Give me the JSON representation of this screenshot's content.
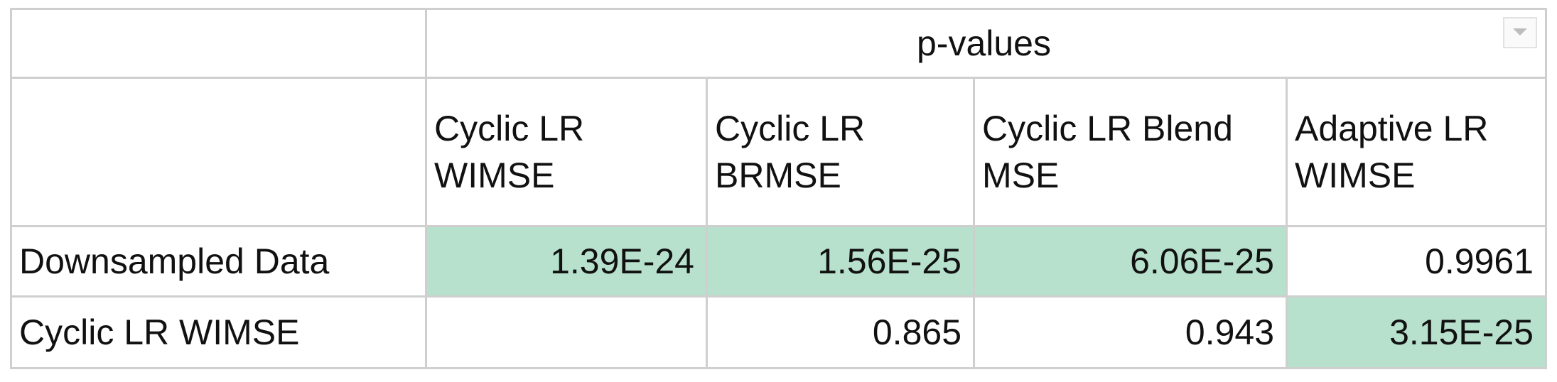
{
  "table": {
    "title": "p-values",
    "columns": [
      "Cyclic LR WIMSE",
      "Cyclic LR BRMSE",
      "Cyclic LR Blend MSE",
      "Adaptive LR WIMSE"
    ],
    "rows": [
      {
        "label": "Downsampled Data",
        "cells": [
          "1.39E-24",
          "1.56E-25",
          "6.06E-25",
          "0.9961"
        ],
        "highlight": [
          true,
          true,
          true,
          false
        ]
      },
      {
        "label": "Cyclic LR WIMSE",
        "cells": [
          null,
          "0.865",
          "0.943",
          "3.15E-25"
        ],
        "highlight": [
          false,
          false,
          false,
          true
        ]
      }
    ],
    "highlight_color": "#b7e1cd"
  }
}
